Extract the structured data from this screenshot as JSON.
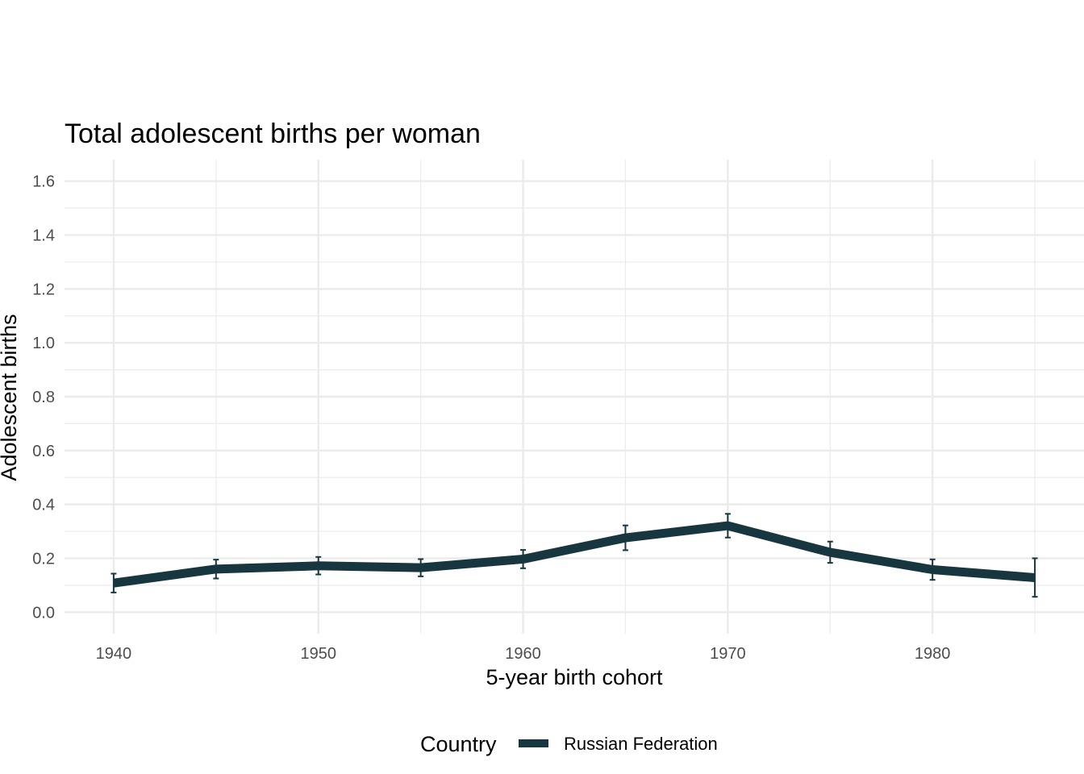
{
  "chart_data": {
    "type": "line",
    "title": "Total adolescent births per woman",
    "xlabel": "5-year birth cohort",
    "ylabel": "Adolescent births",
    "x": [
      1940,
      1945,
      1950,
      1955,
      1960,
      1965,
      1970,
      1975,
      1980,
      1985
    ],
    "xlim": [
      1937.6,
      1987.4
    ],
    "ylim": [
      -0.08,
      1.68
    ],
    "x_ticks": [
      1940,
      1950,
      1960,
      1970,
      1980
    ],
    "x_tick_labels": [
      "1940",
      "1950",
      "1960",
      "1970",
      "1980"
    ],
    "y_ticks": [
      0,
      0.2,
      0.4,
      0.6,
      0.8,
      1.0,
      1.2,
      1.4,
      1.6
    ],
    "y_tick_labels": [
      "0.0",
      "0.2",
      "0.4",
      "0.6",
      "0.8",
      "1.0",
      "1.2",
      "1.4",
      "1.6"
    ],
    "grid": true,
    "legend": {
      "title": "Country",
      "position": "bottom"
    },
    "series": [
      {
        "name": "Russian Federation",
        "color": "#17363f",
        "values": [
          0.108,
          0.16,
          0.172,
          0.165,
          0.197,
          0.276,
          0.321,
          0.222,
          0.158,
          0.128
        ],
        "lower": [
          0.073,
          0.125,
          0.14,
          0.133,
          0.163,
          0.23,
          0.277,
          0.183,
          0.12,
          0.057
        ],
        "upper": [
          0.143,
          0.195,
          0.205,
          0.197,
          0.231,
          0.322,
          0.365,
          0.262,
          0.196,
          0.2
        ]
      }
    ]
  }
}
